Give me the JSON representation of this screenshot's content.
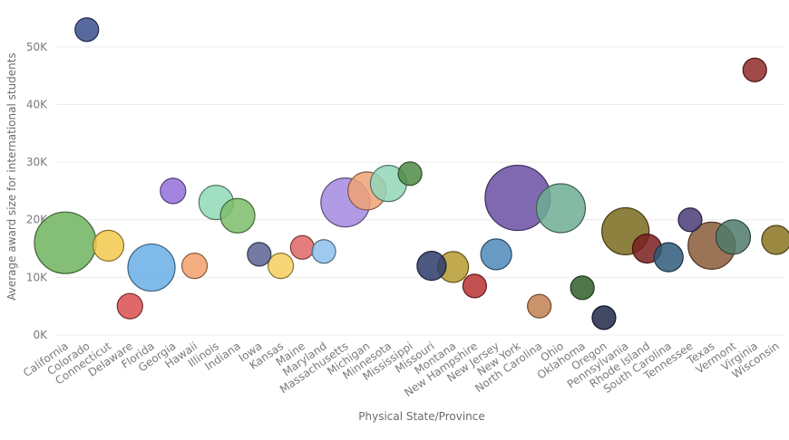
{
  "chart_data": {
    "type": "scatter",
    "title": "",
    "xlabel": "Physical State/Province",
    "ylabel": "Average award size for international students",
    "ylim": [
      0,
      55000
    ],
    "yticks": [
      {
        "value": 0,
        "label": "0K"
      },
      {
        "value": 10000,
        "label": "10K"
      },
      {
        "value": 20000,
        "label": "20K"
      },
      {
        "value": 30000,
        "label": "30K"
      },
      {
        "value": 40000,
        "label": "40K"
      },
      {
        "value": 50000,
        "label": "50K"
      }
    ],
    "grid": true,
    "categories": [
      "California",
      "Colorado",
      "Connecticut",
      "Delaware",
      "Florida",
      "Georgia",
      "Hawaii",
      "Illinois",
      "Indiana",
      "Iowa",
      "Kansas",
      "Maine",
      "Maryland",
      "Massachusetts",
      "Michigan",
      "Minnesota",
      "Mississippi",
      "Missouri",
      "Montana",
      "New Hampshire",
      "New Jersey",
      "New York",
      "North Carolina",
      "Ohio",
      "Oklahoma",
      "Oregon",
      "Pennsylvania",
      "Rhode Island",
      "South Carolina",
      "Tennessee",
      "Texas",
      "Vermont",
      "Virginia",
      "Wisconsin"
    ],
    "points": [
      {
        "state": "California",
        "value": 16000,
        "size": 34,
        "color": "#6fb35f"
      },
      {
        "state": "Colorado",
        "value": 53000,
        "size": 13,
        "color": "#3b4f8c"
      },
      {
        "state": "Connecticut",
        "value": 15500,
        "size": 17,
        "color": "#f2c94c"
      },
      {
        "state": "Delaware",
        "value": 5000,
        "size": 14,
        "color": "#d94f4f"
      },
      {
        "state": "Florida",
        "value": 11700,
        "size": 26,
        "color": "#6aaee6"
      },
      {
        "state": "Georgia",
        "value": 25000,
        "size": 14,
        "color": "#9370db"
      },
      {
        "state": "Hawaii",
        "value": 12000,
        "size": 14,
        "color": "#f2a06b"
      },
      {
        "state": "Illinois",
        "value": 23000,
        "size": 19,
        "color": "#8fd9b6"
      },
      {
        "state": "Indiana",
        "value": 20700,
        "size": 19,
        "color": "#7cbd6b"
      },
      {
        "state": "Iowa",
        "value": 14000,
        "size": 13,
        "color": "#5a6394"
      },
      {
        "state": "Kansas",
        "value": 12000,
        "size": 14,
        "color": "#f5cf5f"
      },
      {
        "state": "Maine",
        "value": 15200,
        "size": 13,
        "color": "#e06666"
      },
      {
        "state": "Maryland",
        "value": 14500,
        "size": 13,
        "color": "#8ec1ec"
      },
      {
        "state": "Massachusetts",
        "value": 23000,
        "size": 27,
        "color": "#a58ae0"
      },
      {
        "state": "Michigan",
        "value": 25000,
        "size": 21,
        "color": "#f0a276"
      },
      {
        "state": "Minnesota",
        "value": 26300,
        "size": 20,
        "color": "#92d6b8"
      },
      {
        "state": "Mississippi",
        "value": 28000,
        "size": 13,
        "color": "#4e8b47"
      },
      {
        "state": "Missouri",
        "value": 12000,
        "size": 16,
        "color": "#2e3b6b"
      },
      {
        "state": "Montana",
        "value": 11800,
        "size": 17,
        "color": "#b59a2f"
      },
      {
        "state": "New Hampshire",
        "value": 8500,
        "size": 13,
        "color": "#b83232"
      },
      {
        "state": "New Jersey",
        "value": 14000,
        "size": 17,
        "color": "#4f88b8"
      },
      {
        "state": "New York",
        "value": 23800,
        "size": 36,
        "color": "#6a4fa3"
      },
      {
        "state": "North Carolina",
        "value": 5000,
        "size": 13,
        "color": "#c2804f"
      },
      {
        "state": "Ohio",
        "value": 22000,
        "size": 27,
        "color": "#6fad93"
      },
      {
        "state": "Oklahoma",
        "value": 8200,
        "size": 13,
        "color": "#2f5f2a"
      },
      {
        "state": "Oregon",
        "value": 3000,
        "size": 13,
        "color": "#1f2846"
      },
      {
        "state": "Pennsylvania",
        "value": 18000,
        "size": 26,
        "color": "#7a6a1c"
      },
      {
        "state": "Rhode Island",
        "value": 15000,
        "size": 16,
        "color": "#7a1f1f"
      },
      {
        "state": "South Carolina",
        "value": 13500,
        "size": 16,
        "color": "#2f5a7a"
      },
      {
        "state": "Tennessee",
        "value": 20000,
        "size": 13,
        "color": "#4a3c78"
      },
      {
        "state": "Texas",
        "value": 15500,
        "size": 26,
        "color": "#8a5a3a"
      },
      {
        "state": "Vermont",
        "value": 17000,
        "size": 19,
        "color": "#4f7a68"
      },
      {
        "state": "Virginia",
        "value": 46000,
        "size": 13,
        "color": "#8f2a2a"
      },
      {
        "state": "Wisconsin",
        "value": 16500,
        "size": 16,
        "color": "#8a7320"
      }
    ]
  }
}
